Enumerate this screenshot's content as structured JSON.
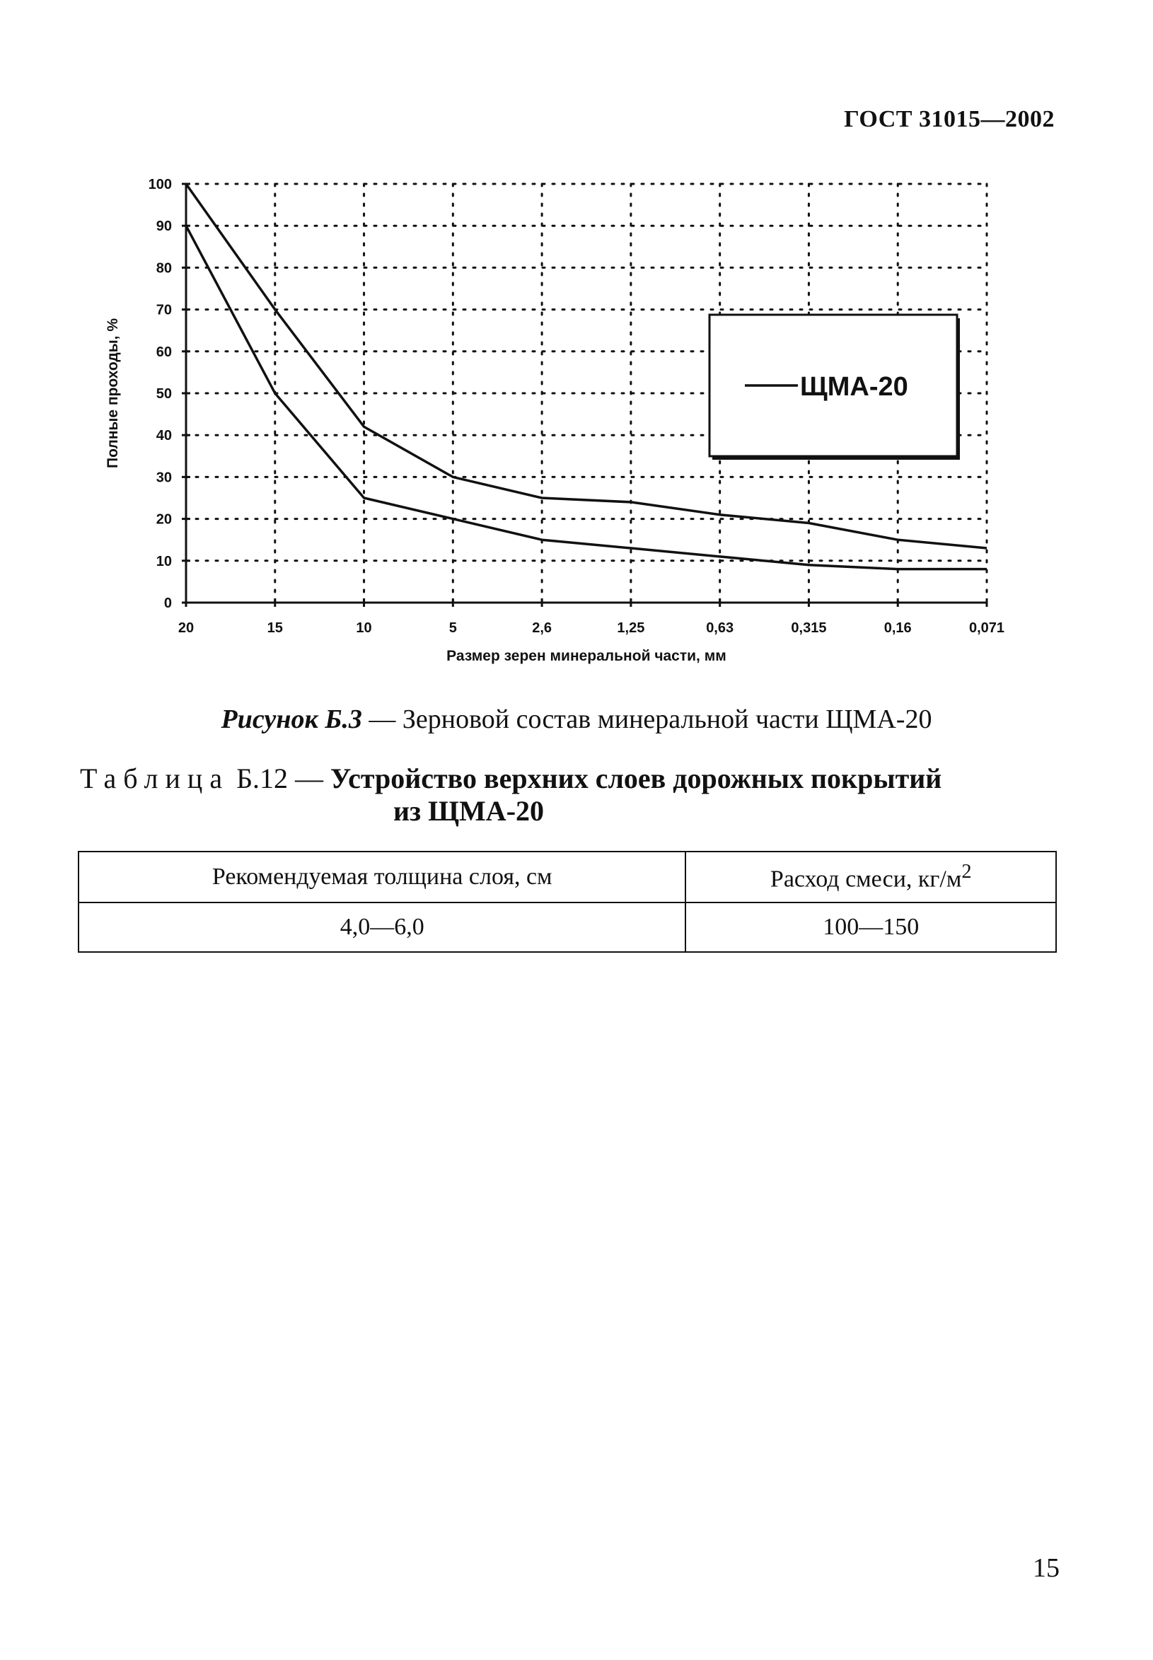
{
  "header": {
    "doc_code": "ГОСТ 31015—2002"
  },
  "figure": {
    "caption_number": "Рисунок Б.3",
    "caption_dash": " — ",
    "caption_text": "Зерновой состав минеральной части ЩМА-20"
  },
  "chart_data": {
    "type": "line",
    "title": "",
    "xlabel": "Размер зерен минеральной части, мм",
    "ylabel": "Полные проходы, %",
    "categories": [
      "20",
      "15",
      "10",
      "5",
      "2,6",
      "1,25",
      "0,63",
      "0,315",
      "0,16",
      "0,071"
    ],
    "ylim": [
      0,
      100
    ],
    "yticks": [
      "0",
      "10",
      "20",
      "30",
      "40",
      "50",
      "60",
      "70",
      "80",
      "90",
      "100"
    ],
    "grid": "dotted",
    "legend": {
      "position": "right",
      "label": "ЩМА-20"
    },
    "series": [
      {
        "name": "ЩМА-20",
        "role": "upper",
        "values": [
          100,
          70,
          42,
          30,
          25,
          24,
          21,
          19,
          15,
          13
        ]
      },
      {
        "name": "ЩМА-20",
        "role": "lower",
        "values": [
          90,
          50,
          25,
          20,
          15,
          13,
          11,
          9,
          8,
          8
        ]
      }
    ]
  },
  "table": {
    "title_prefix": "Таблица",
    "title_number": " Б.12 — ",
    "title_bold_line1": "Устройство верхних слоев дорожных покрытий",
    "title_bold_line2": "из ЩМА-20",
    "headers": [
      "Рекомендуемая толщина слоя, см",
      "Расход смеси, кг/м",
      "2"
    ],
    "row": [
      "4,0—6,0",
      "100—150"
    ]
  },
  "footer": {
    "page_number": "15"
  }
}
